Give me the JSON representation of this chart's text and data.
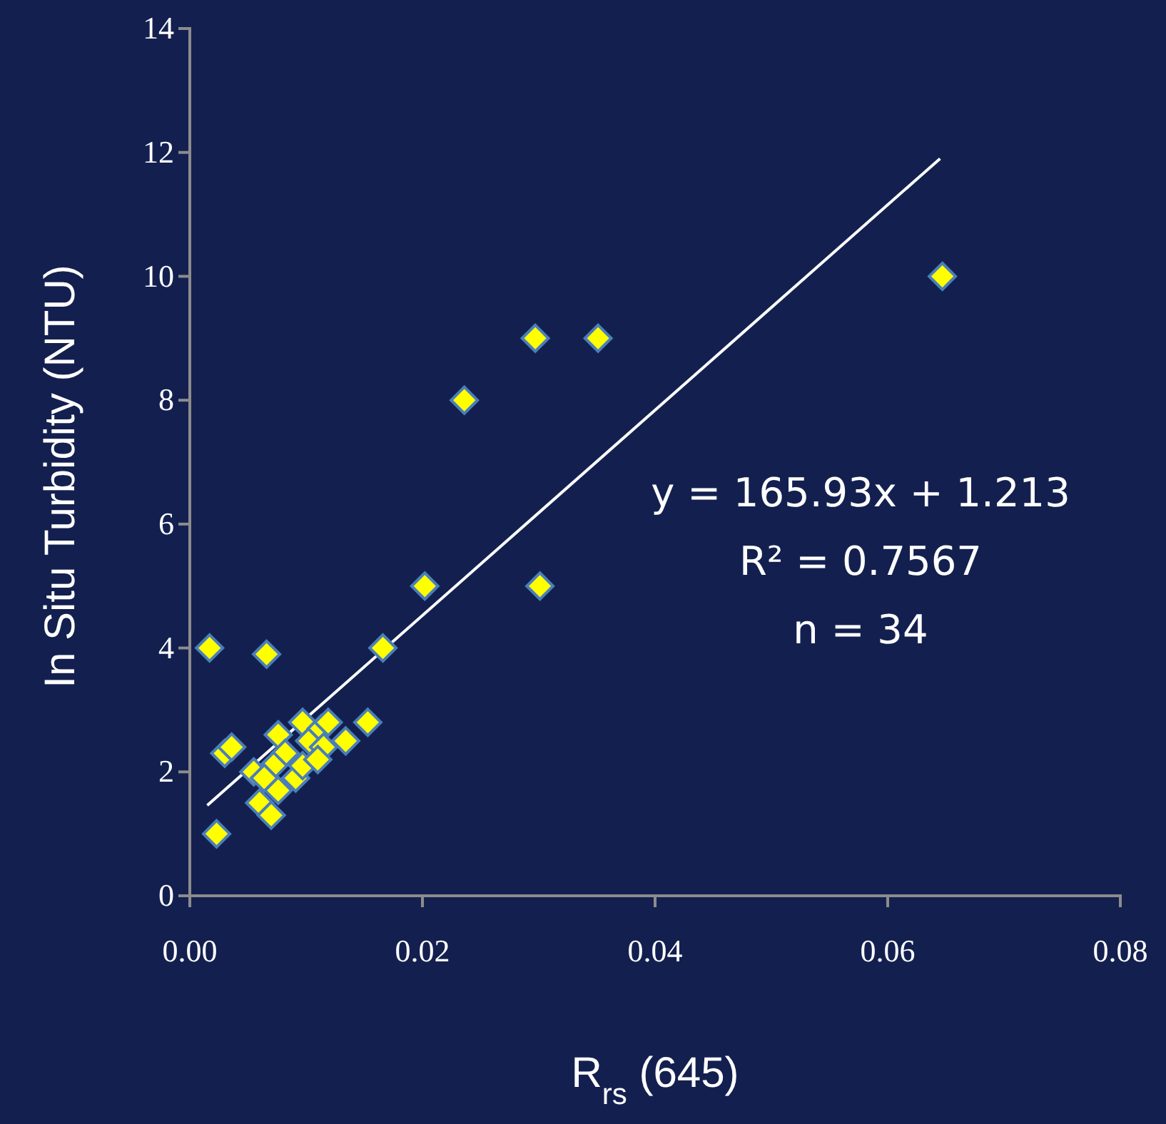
{
  "chart_data": {
    "type": "scatter",
    "xlabel": "R$_{rs}$ (645)",
    "ylabel": "In Situ Turbidity (NTU)",
    "xlim": [
      0,
      0.08
    ],
    "xticks": [
      {
        "value": 0,
        "label": "0.00"
      },
      {
        "value": 0.02,
        "label": "0.02"
      },
      {
        "value": 0.04,
        "label": "0.04"
      },
      {
        "value": 0.06,
        "label": "0.06"
      },
      {
        "value": 0.08,
        "label": "0.08"
      }
    ],
    "ylim": [
      0,
      14
    ],
    "yticks": [
      0,
      2,
      4,
      6,
      8,
      10,
      12,
      14
    ],
    "grid": false,
    "annotations": [
      "y = 165.93x + 1.213",
      "R² = 0.7567",
      "n = 34"
    ],
    "series": [
      {
        "marker": "diamond",
        "color": "#ffff00",
        "x": [
          0.0017,
          0.0066,
          0.0166,
          0.0202,
          0.0301,
          0.0236,
          0.0297,
          0.0351,
          0.0647,
          0.0023,
          0.003,
          0.0036,
          0.0055,
          0.0076,
          0.0097,
          0.0082,
          0.0072,
          0.0064,
          0.0076,
          0.0091,
          0.0097,
          0.0103,
          0.0113,
          0.0119,
          0.0115,
          0.011,
          0.0134,
          0.0153,
          0.006,
          0.007
        ],
        "values": [
          4.0,
          3.9,
          4.0,
          5.0,
          5.0,
          8.0,
          9.0,
          9.0,
          10.0,
          1.0,
          2.3,
          2.4,
          2.0,
          2.6,
          2.8,
          2.3,
          2.1,
          1.9,
          1.7,
          1.9,
          2.1,
          2.5,
          2.7,
          2.8,
          2.4,
          2.2,
          2.5,
          2.8,
          1.5,
          1.3
        ]
      },
      {
        "type": "line",
        "color": "#ffffff",
        "x": [
          0.0015,
          0.0645
        ],
        "values": [
          1.46,
          11.9
        ]
      }
    ]
  }
}
